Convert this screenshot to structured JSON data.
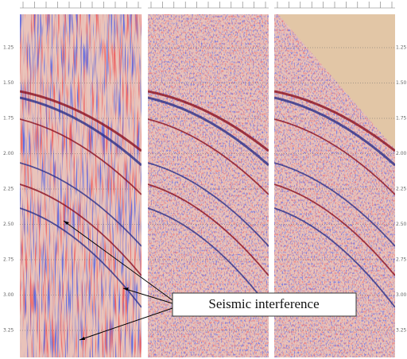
{
  "annotation": "Seismic interference",
  "time_labels": [
    "1.25",
    "1.50",
    "1.75",
    "2.00",
    "2.25",
    "2.50",
    "2.75",
    "3.00",
    "3.25"
  ]
}
